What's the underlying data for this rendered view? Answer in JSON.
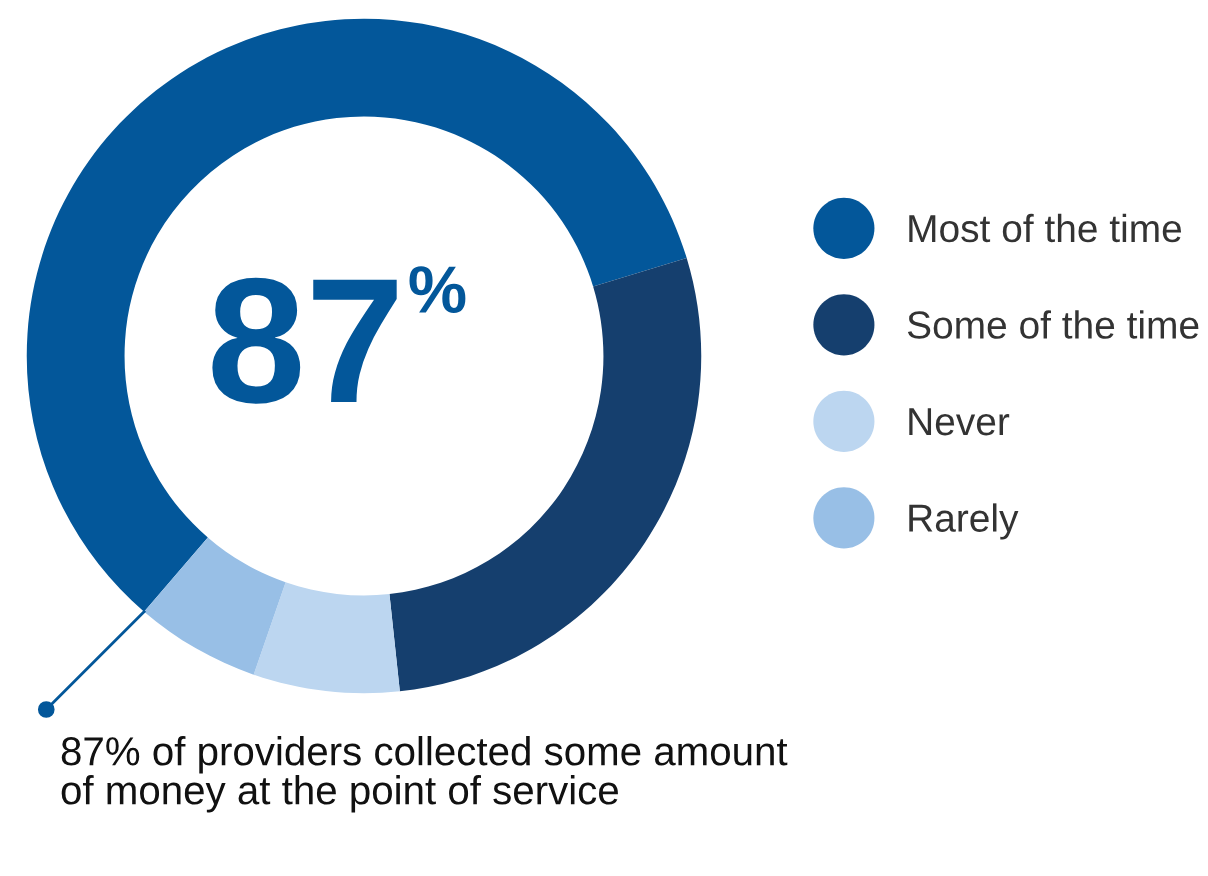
{
  "chart_data": {
    "type": "donut",
    "categories": [
      "Most of the time",
      "Some of the time",
      "Never",
      "Rarely"
    ],
    "values": [
      59,
      28,
      7,
      6
    ],
    "colors": [
      "#03579a",
      "#153f6e",
      "#bcd6f0",
      "#98bfe6"
    ],
    "annotations": [
      "87%",
      "87% of providers collected some amount of money at the point of service"
    ],
    "legend": "right"
  }
}
